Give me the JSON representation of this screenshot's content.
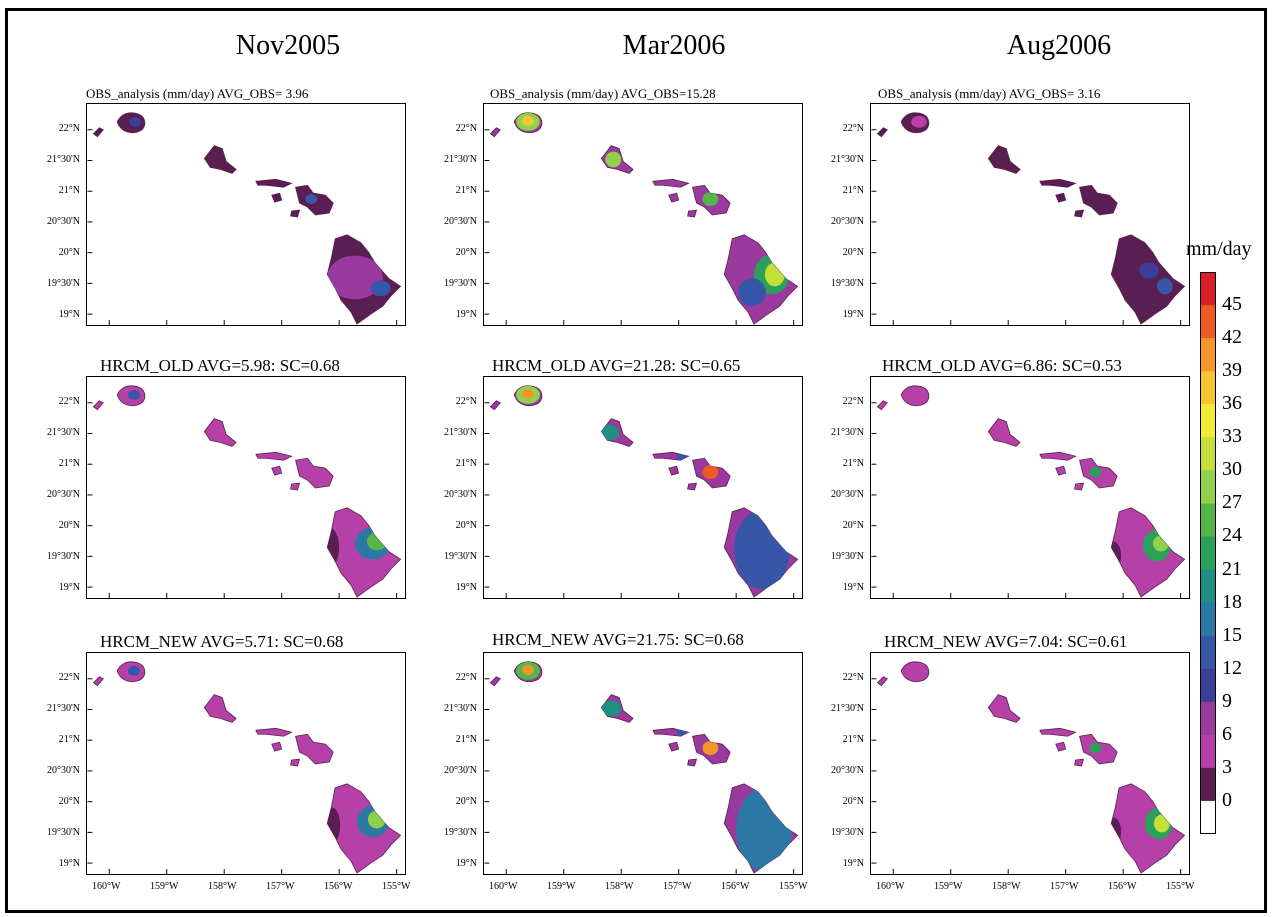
{
  "columns": [
    {
      "title": "Nov2005",
      "panels": [
        {
          "title": "OBS_analysis (mm/day)   AVG_OBS= 3.96"
        },
        {
          "title": "HRCM_OLD  AVG=5.98: SC=0.68"
        },
        {
          "title": "HRCM_NEW  AVG=5.71: SC=0.68"
        }
      ]
    },
    {
      "title": "Mar2006",
      "panels": [
        {
          "title": "OBS_analysis (mm/day)   AVG_OBS=15.28"
        },
        {
          "title": "HRCM_OLD  AVG=21.28: SC=0.65"
        },
        {
          "title": "HRCM_NEW  AVG=21.75: SC=0.68"
        }
      ]
    },
    {
      "title": "Aug2006",
      "panels": [
        {
          "title": "OBS_analysis (mm/day)   AVG_OBS= 3.16"
        },
        {
          "title": "HRCM_OLD  AVG=6.86: SC=0.53"
        },
        {
          "title": "HRCM_NEW  AVG=7.04: SC=0.61"
        }
      ]
    }
  ],
  "lat_labels": [
    "22°N",
    "21°30'N",
    "21°N",
    "20°30'N",
    "20°N",
    "19°30'N",
    "19°N"
  ],
  "lon_labels": [
    "160°W",
    "159°W",
    "158°W",
    "157°W",
    "156°W",
    "155°W"
  ],
  "colorbar": {
    "title": "mm/day",
    "labels": [
      "45",
      "42",
      "39",
      "36",
      "33",
      "30",
      "27",
      "24",
      "21",
      "18",
      "15",
      "12",
      "9",
      "6",
      "3",
      "0"
    ],
    "colors": [
      "#d8202a",
      "#ee5a24",
      "#f5962a",
      "#f7c531",
      "#f2ea3a",
      "#c4de3a",
      "#8fd14a",
      "#54b848",
      "#2aa05a",
      "#1f8f84",
      "#2b78a6",
      "#3656a8",
      "#3b3f9a",
      "#9a3a9e",
      "#b541a8",
      "#5a1f52",
      "#ffffff"
    ]
  }
}
